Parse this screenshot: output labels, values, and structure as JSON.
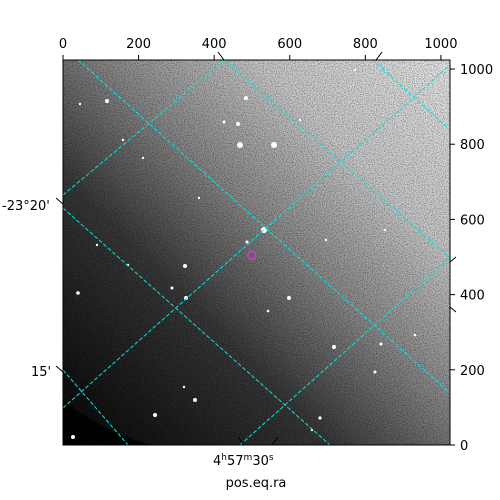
{
  "figure": {
    "xlabel": "pos.eq.ra",
    "ra_label": {
      "h": "4",
      "m": "57",
      "s": "30",
      "h_unit": "h",
      "m_unit": "m",
      "s_unit": "s"
    },
    "dec_labels": [
      "-23°20'",
      "15'"
    ],
    "grid_color": "#00e5e5",
    "marker_color": "#c040c0"
  },
  "chart_data": {
    "type": "scatter",
    "title": "",
    "xlabel": "pos.eq.ra",
    "ylabel": "",
    "xlim": [
      0,
      1024
    ],
    "ylim": [
      0,
      1024
    ],
    "x_ticks": [
      0,
      200,
      400,
      600,
      800,
      1000
    ],
    "y_ticks": [
      0,
      200,
      400,
      600,
      800,
      1000
    ],
    "x_tick_labels": [
      "0",
      "200",
      "400",
      "600",
      "800",
      "1000"
    ],
    "y_tick_labels": [
      "0",
      "200",
      "400",
      "600",
      "800",
      "1000"
    ],
    "grid": true,
    "marker": {
      "x": 500,
      "y": 505
    }
  }
}
